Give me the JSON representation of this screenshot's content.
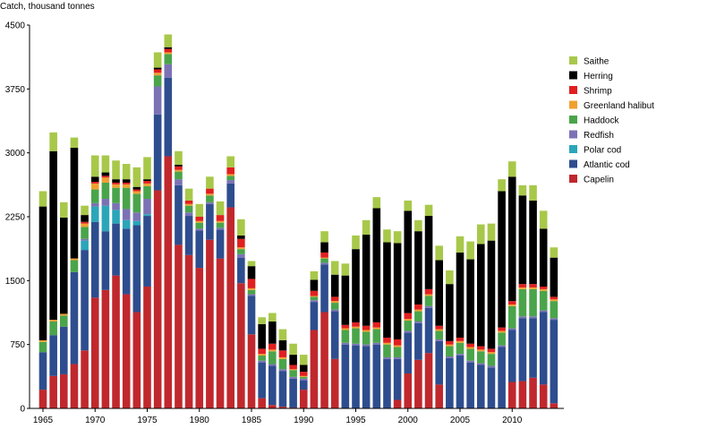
{
  "chart_data": {
    "type": "bar",
    "stacked": true,
    "ylabel": "Catch, thousand tonnes",
    "ylim": [
      0,
      4500
    ],
    "yticks": [
      0,
      750,
      1500,
      2250,
      3000,
      3750,
      4500
    ],
    "ytick_labels": [
      "0",
      "750",
      "1500",
      "2250",
      "3000",
      "3750",
      "4500"
    ],
    "xticks": [
      1965,
      1970,
      1975,
      1980,
      1985,
      1990,
      1995,
      2000,
      2005,
      2010
    ],
    "xtick_labels": [
      "1965",
      "1970",
      "1975",
      "1980",
      "1985",
      "1990",
      "1995",
      "2000",
      "2005",
      "2010"
    ],
    "legend_position": "right",
    "categories": [
      1965,
      1966,
      1967,
      1968,
      1969,
      1970,
      1971,
      1972,
      1973,
      1974,
      1975,
      1976,
      1977,
      1978,
      1979,
      1980,
      1981,
      1982,
      1983,
      1984,
      1985,
      1986,
      1987,
      1988,
      1989,
      1990,
      1991,
      1992,
      1993,
      1994,
      1995,
      1996,
      1997,
      1998,
      1999,
      2000,
      2001,
      2002,
      2003,
      2004,
      2005,
      2006,
      2007,
      2008,
      2009,
      2010,
      2011,
      2012,
      2013,
      2014
    ],
    "series": [
      {
        "name": "Capelin",
        "color": "#c0282d",
        "values": [
          220,
          380,
          400,
          520,
          680,
          1300,
          1390,
          1560,
          1340,
          1130,
          1430,
          2560,
          2960,
          1920,
          1800,
          1650,
          1980,
          1760,
          2360,
          1470,
          870,
          120,
          40,
          20,
          10,
          220,
          920,
          1130,
          580,
          0,
          0,
          0,
          0,
          0,
          100,
          410,
          570,
          650,
          280,
          0,
          0,
          0,
          0,
          0,
          0,
          310,
          320,
          360,
          280,
          60
        ]
      },
      {
        "name": "Atlantic cod",
        "color": "#2e4d8e",
        "values": [
          440,
          480,
          560,
          1080,
          1180,
          890,
          690,
          610,
          770,
          1020,
          830,
          890,
          920,
          700,
          460,
          440,
          420,
          340,
          280,
          300,
          450,
          420,
          460,
          420,
          340,
          110,
          330,
          560,
          560,
          750,
          740,
          730,
          750,
          580,
          480,
          480,
          430,
          530,
          510,
          590,
          620,
          540,
          510,
          480,
          720,
          610,
          740,
          700,
          850,
          980
        ]
      },
      {
        "name": "Polar cod",
        "color": "#2aa6b8",
        "values": [
          0,
          0,
          0,
          0,
          110,
          180,
          300,
          160,
          100,
          50,
          20,
          0,
          0,
          0,
          0,
          0,
          0,
          0,
          0,
          0,
          0,
          0,
          0,
          0,
          0,
          0,
          0,
          0,
          0,
          0,
          0,
          0,
          0,
          0,
          0,
          0,
          0,
          0,
          0,
          0,
          0,
          0,
          0,
          0,
          0,
          0,
          0,
          0,
          0,
          0
        ]
      },
      {
        "name": "Redfish",
        "color": "#7b72b5",
        "values": [
          0,
          0,
          0,
          0,
          20,
          40,
          80,
          80,
          130,
          100,
          180,
          330,
          160,
          70,
          40,
          20,
          20,
          20,
          40,
          40,
          20,
          20,
          20,
          20,
          20,
          20,
          20,
          20,
          20,
          20,
          20,
          20,
          20,
          20,
          20,
          20,
          20,
          20,
          20,
          20,
          20,
          20,
          20,
          20,
          20,
          20,
          20,
          20,
          20,
          20
        ]
      },
      {
        "name": "Haddock",
        "color": "#4aa44a",
        "values": [
          120,
          160,
          130,
          140,
          140,
          160,
          190,
          180,
          250,
          220,
          150,
          130,
          120,
          90,
          80,
          70,
          80,
          60,
          50,
          60,
          50,
          60,
          150,
          120,
          80,
          20,
          40,
          50,
          80,
          150,
          180,
          150,
          160,
          150,
          120,
          120,
          120,
          120,
          100,
          120,
          130,
          140,
          140,
          140,
          150,
          260,
          320,
          320,
          230,
          200
        ]
      },
      {
        "name": "Greenland halibut",
        "color": "#f0a030",
        "values": [
          20,
          20,
          20,
          20,
          40,
          70,
          60,
          40,
          40,
          30,
          30,
          30,
          20,
          20,
          20,
          20,
          20,
          20,
          20,
          20,
          20,
          20,
          20,
          20,
          10,
          10,
          10,
          10,
          20,
          20,
          20,
          20,
          20,
          20,
          20,
          20,
          20,
          20,
          20,
          20,
          20,
          20,
          20,
          20,
          20,
          20,
          20,
          20,
          20,
          20
        ]
      },
      {
        "name": "Shrimp",
        "color": "#e02020",
        "values": [
          0,
          0,
          0,
          0,
          20,
          20,
          20,
          20,
          20,
          20,
          30,
          40,
          40,
          40,
          40,
          50,
          60,
          70,
          80,
          100,
          110,
          60,
          70,
          80,
          50,
          50,
          60,
          60,
          50,
          40,
          50,
          50,
          60,
          60,
          70,
          70,
          60,
          60,
          40,
          40,
          40,
          40,
          40,
          40,
          40,
          40,
          40,
          40,
          30,
          30
        ]
      },
      {
        "name": "Herring",
        "color": "#000000",
        "values": [
          1570,
          1980,
          1130,
          1300,
          80,
          60,
          40,
          40,
          40,
          30,
          20,
          20,
          20,
          20,
          0,
          0,
          0,
          0,
          0,
          40,
          150,
          290,
          260,
          120,
          120,
          80,
          130,
          120,
          260,
          580,
          860,
          1070,
          1340,
          1120,
          1130,
          1200,
          860,
          860,
          770,
          670,
          1000,
          990,
          1200,
          1270,
          1600,
          1460,
          1040,
          980,
          680,
          460
        ]
      },
      {
        "name": "Saithe",
        "color": "#a8c84a",
        "values": [
          180,
          220,
          180,
          120,
          110,
          250,
          200,
          220,
          180,
          230,
          260,
          180,
          150,
          160,
          140,
          150,
          140,
          160,
          130,
          190,
          60,
          80,
          100,
          130,
          130,
          120,
          100,
          130,
          160,
          140,
          160,
          170,
          130,
          150,
          140,
          120,
          130,
          130,
          170,
          160,
          190,
          210,
          230,
          200,
          140,
          180,
          120,
          180,
          210,
          120
        ]
      }
    ]
  }
}
